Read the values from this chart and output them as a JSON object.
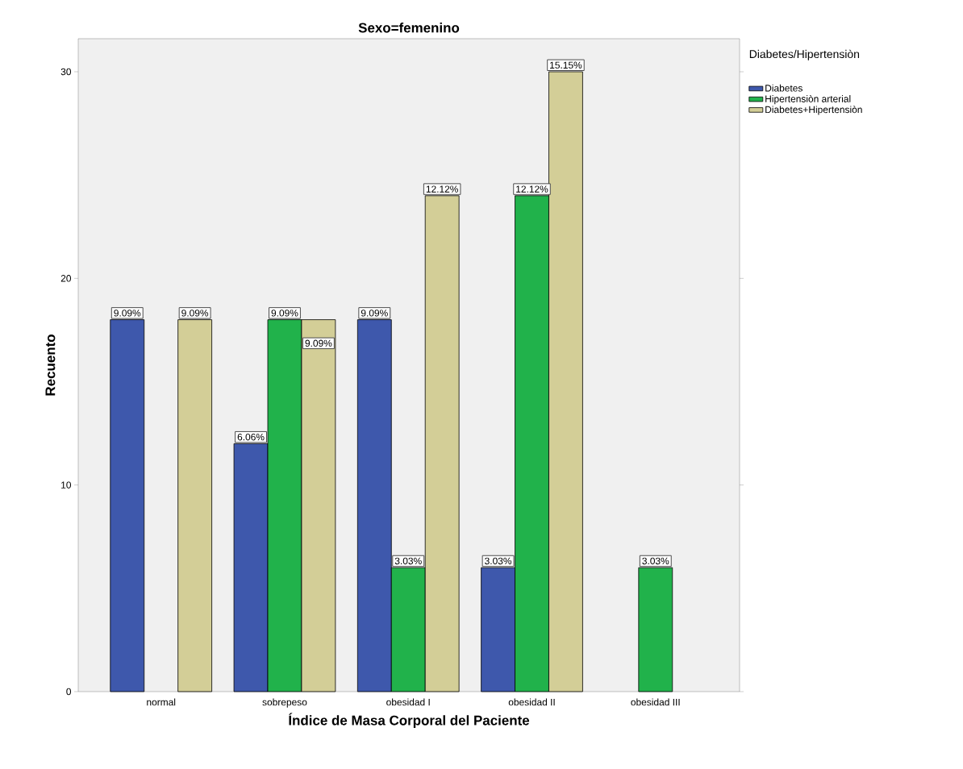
{
  "chart_data": {
    "type": "bar",
    "title": "Sexo=femenino",
    "xlabel": "Índice de Masa Corporal del Paciente",
    "ylabel": "Recuento",
    "legend_title": "Diabetes/Hipertensiòn",
    "categories": [
      "normal",
      "sobrepeso",
      "obesidad I",
      "obesidad II",
      "obesidad III"
    ],
    "series": [
      {
        "name": "Diabetes",
        "color": "#3e58ac",
        "values": [
          18,
          12,
          18,
          6,
          null
        ]
      },
      {
        "name": "Hipertensiòn arterial",
        "color": "#21b24b",
        "values": [
          null,
          18,
          6,
          24,
          6
        ]
      },
      {
        "name": "Diabetes+Hipertensiòn",
        "color": "#d3ce97",
        "values": [
          18,
          18,
          24,
          30,
          null
        ]
      }
    ],
    "annotations": [
      "9.09%",
      "9.09%",
      "6.06%",
      "9.09%",
      "9.09%",
      "9.09%",
      "3.03%",
      "12.12%",
      "3.03%",
      "12.12%",
      "15.15%",
      "3.03%"
    ],
    "ylim": [
      0,
      31.6
    ],
    "yticks": [
      0,
      10,
      20,
      30
    ],
    "grid": false,
    "legend": "right"
  }
}
